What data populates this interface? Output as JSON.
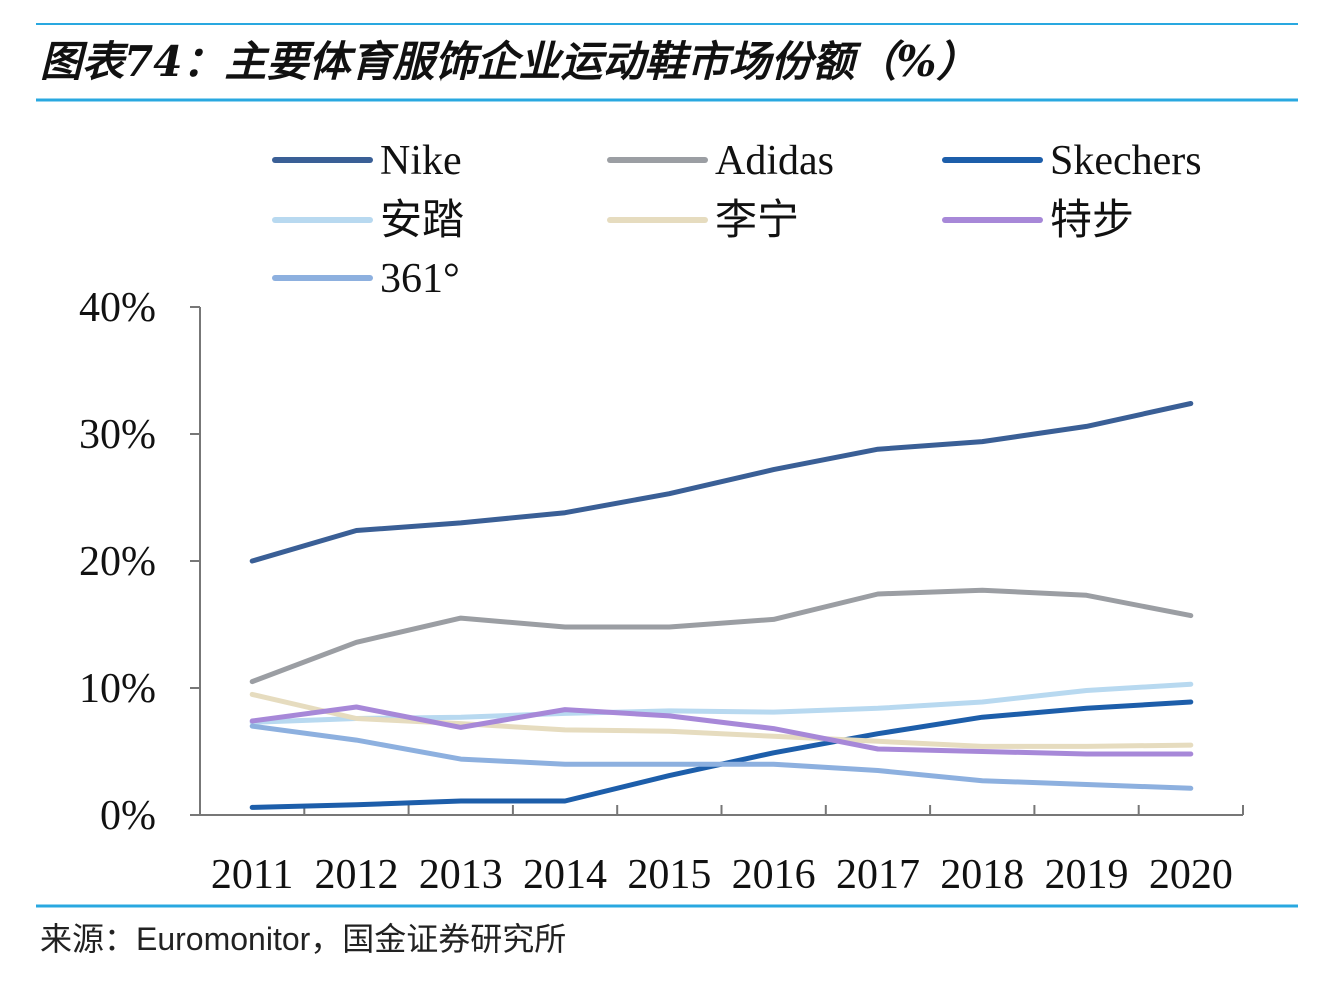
{
  "figure": {
    "title": "图表74：主要体育服饰企业运动鞋市场份额（%）",
    "source": "来源：Euromonitor，国金证券研究所",
    "rule_color": "#29a8e0"
  },
  "chart_data": {
    "type": "line",
    "title": "",
    "xlabel": "",
    "ylabel": "",
    "x": [
      "2011",
      "2012",
      "2013",
      "2014",
      "2015",
      "2016",
      "2017",
      "2018",
      "2019",
      "2020"
    ],
    "y_ticks": [
      "0%",
      "10%",
      "20%",
      "30%",
      "40%"
    ],
    "ylim": [
      0,
      40
    ],
    "y_unit": "%",
    "grid": false,
    "legend_position": "top",
    "series": [
      {
        "name": "Nike",
        "color": "#3a5f96",
        "values": [
          20.0,
          22.4,
          23.0,
          23.8,
          25.3,
          27.2,
          28.8,
          29.4,
          30.6,
          32.4
        ]
      },
      {
        "name": "Adidas",
        "color": "#9b9ea3",
        "values": [
          10.5,
          13.6,
          15.5,
          14.8,
          14.8,
          15.4,
          17.4,
          17.7,
          17.3,
          15.7
        ]
      },
      {
        "name": "Skechers",
        "color": "#1d5eaa",
        "values": [
          0.6,
          0.8,
          1.1,
          1.1,
          3.1,
          4.9,
          6.4,
          7.7,
          8.4,
          8.9
        ]
      },
      {
        "name": "安踏",
        "color": "#b8d9f0",
        "values": [
          7.3,
          7.6,
          7.7,
          8.0,
          8.2,
          8.1,
          8.4,
          8.9,
          9.8,
          10.3
        ]
      },
      {
        "name": "李宁",
        "color": "#e6dcbf",
        "values": [
          9.5,
          7.6,
          7.2,
          6.7,
          6.6,
          6.2,
          5.8,
          5.4,
          5.4,
          5.5
        ]
      },
      {
        "name": "特步",
        "color": "#a788d8",
        "values": [
          7.4,
          8.5,
          6.9,
          8.3,
          7.8,
          6.8,
          5.2,
          5.0,
          4.8,
          4.8
        ]
      },
      {
        "name": "361°",
        "color": "#8db0df",
        "values": [
          7.0,
          5.9,
          4.4,
          4.0,
          4.0,
          4.0,
          3.5,
          2.7,
          2.4,
          2.1
        ]
      }
    ]
  }
}
